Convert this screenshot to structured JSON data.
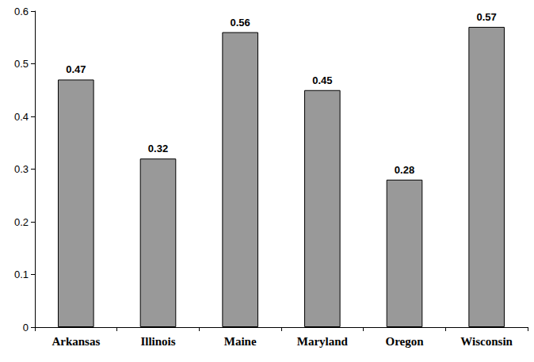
{
  "chart_data": {
    "type": "bar",
    "categories": [
      "Arkansas",
      "Illinois",
      "Maine",
      "Maryland",
      "Oregon",
      "Wisconsin"
    ],
    "values": [
      0.47,
      0.32,
      0.56,
      0.45,
      0.28,
      0.57
    ],
    "color": "#999999",
    "ylim": [
      0,
      0.6
    ],
    "yticks": [
      0,
      0.1,
      0.2,
      0.3,
      0.4,
      0.5,
      0.6
    ],
    "grid": false,
    "data_labels": true
  }
}
